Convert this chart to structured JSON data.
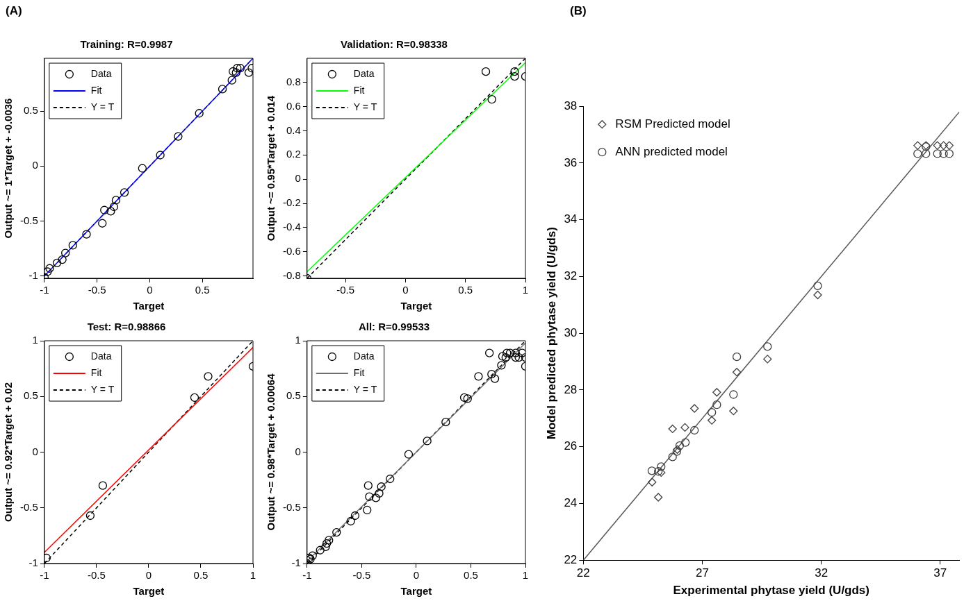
{
  "chart_data": [
    {
      "type": "scatter",
      "title": "Training: R=0.9987",
      "xlabel": "Target",
      "ylabel": "Output ~= 1*Target + -0.0036",
      "annotations": [
        "(A)"
      ],
      "xlim": [
        -1,
        0.98
      ],
      "ylim": [
        -1.02,
        0.98
      ],
      "xticks": [
        -1,
        -0.5,
        0,
        0.5
      ],
      "yticks": [
        -1,
        -0.5,
        0,
        0.5
      ],
      "legend": "top left",
      "series": [
        {
          "name": "Data",
          "type": "scatter",
          "color": "#000000",
          "marker": "circle",
          "x": [
            -1,
            -0.97,
            -0.95,
            -0.88,
            -0.83,
            -0.8,
            -0.73,
            -0.6,
            -0.45,
            -0.43,
            -0.37,
            -0.34,
            -0.32,
            -0.24,
            -0.07,
            0.1,
            0.27,
            0.47,
            0.69,
            0.78,
            0.79,
            0.82,
            0.83,
            0.86,
            0.94,
            0.97
          ],
          "values": [
            -1.01,
            -0.96,
            -0.93,
            -0.88,
            -0.85,
            -0.79,
            -0.72,
            -0.62,
            -0.52,
            -0.4,
            -0.41,
            -0.37,
            -0.31,
            -0.24,
            -0.02,
            0.1,
            0.27,
            0.48,
            0.7,
            0.78,
            0.86,
            0.85,
            0.89,
            0.89,
            0.85,
            0.89
          ]
        },
        {
          "name": "Fit",
          "type": "line",
          "color": "#0000ff",
          "marker": "none",
          "line_style": "solid",
          "x": [
            -1,
            0.98
          ],
          "values": [
            -1,
            0.98
          ]
        },
        {
          "name": "Y = T",
          "type": "line",
          "color": "#000000",
          "marker": "none",
          "line_style": "dashed",
          "x": [
            -1,
            0.98
          ],
          "values": [
            -1,
            0.98
          ]
        }
      ]
    },
    {
      "type": "scatter",
      "title": "Validation: R=0.98338",
      "xlabel": "Target",
      "ylabel": "Output ~= 0.95*Target + 0.014",
      "xlim": [
        -0.82,
        1
      ],
      "ylim": [
        -0.82,
        1
      ],
      "xticks": [
        -0.5,
        0,
        0.5,
        1
      ],
      "yticks": [
        -0.8,
        -0.6,
        -0.4,
        -0.2,
        0,
        0.2,
        0.4,
        0.6,
        0.8
      ],
      "legend": "top left",
      "series": [
        {
          "name": "Data",
          "type": "scatter",
          "color": "#000000",
          "marker": "circle",
          "x": [
            -0.82,
            0.67,
            0.72,
            0.91,
            0.91,
            1
          ],
          "values": [
            -0.82,
            0.89,
            0.66,
            0.89,
            0.85,
            0.85
          ]
        },
        {
          "name": "Fit",
          "type": "line",
          "color": "#00ff00",
          "marker": "none",
          "line_style": "solid",
          "x": [
            -0.82,
            1
          ],
          "values": [
            -0.765,
            0.964
          ]
        },
        {
          "name": "Y = T",
          "type": "line",
          "color": "#000000",
          "marker": "none",
          "line_style": "dashed",
          "x": [
            -0.82,
            1
          ],
          "values": [
            -0.82,
            1
          ]
        }
      ]
    },
    {
      "type": "scatter",
      "title": "Test: R=0.98866",
      "xlabel": "Target",
      "ylabel": "Output ~= 0.92*Target + 0.02",
      "xlim": [
        -1,
        1
      ],
      "ylim": [
        -1,
        1
      ],
      "xticks": [
        -1,
        -0.5,
        0,
        0.5,
        1
      ],
      "yticks": [
        -1,
        -0.5,
        0,
        0.5,
        1
      ],
      "legend": "top left",
      "series": [
        {
          "name": "Data",
          "type": "scatter",
          "color": "#000000",
          "marker": "circle",
          "x": [
            -0.98,
            -0.56,
            -0.44,
            0.44,
            0.57,
            1
          ],
          "values": [
            -0.95,
            -0.57,
            -0.3,
            0.49,
            0.68,
            0.77
          ]
        },
        {
          "name": "Fit",
          "type": "line",
          "color": "#ff0000",
          "marker": "none",
          "line_style": "solid",
          "x": [
            -1,
            1
          ],
          "values": [
            -0.9,
            0.94
          ]
        },
        {
          "name": "Y = T",
          "type": "line",
          "color": "#000000",
          "marker": "none",
          "line_style": "dashed",
          "x": [
            -1,
            1
          ],
          "values": [
            -1,
            1
          ]
        }
      ]
    },
    {
      "type": "scatter",
      "title": "All: R=0.99533",
      "xlabel": "Target",
      "ylabel": "Output ~= 0.98*Target + 0.00064",
      "xlim": [
        -1,
        1
      ],
      "ylim": [
        -1,
        1
      ],
      "xticks": [
        -1,
        -0.5,
        0,
        0.5,
        1
      ],
      "yticks": [
        -1,
        -0.5,
        0,
        0.5,
        1
      ],
      "legend": "top left",
      "series": [
        {
          "name": "Data",
          "type": "scatter",
          "color": "#000000",
          "marker": "circle",
          "x": [
            -1,
            -0.97,
            -0.95,
            -0.88,
            -0.83,
            -0.8,
            -0.73,
            -0.6,
            -0.45,
            -0.43,
            -0.37,
            -0.34,
            -0.32,
            -0.24,
            -0.07,
            0.1,
            0.27,
            0.47,
            0.69,
            0.78,
            0.79,
            0.82,
            0.83,
            0.86,
            0.94,
            0.97,
            -0.82,
            0.67,
            0.72,
            0.91,
            0.91,
            1,
            -0.98,
            -0.56,
            -0.44,
            0.44,
            0.57,
            1
          ],
          "values": [
            -1,
            -0.96,
            -0.93,
            -0.88,
            -0.85,
            -0.79,
            -0.72,
            -0.62,
            -0.52,
            -0.4,
            -0.41,
            -0.37,
            -0.31,
            -0.24,
            -0.02,
            0.1,
            0.27,
            0.48,
            0.7,
            0.78,
            0.86,
            0.85,
            0.89,
            0.89,
            0.85,
            0.89,
            -0.82,
            0.89,
            0.66,
            0.89,
            0.85,
            0.85,
            -0.95,
            -0.57,
            -0.3,
            0.49,
            0.68,
            0.77
          ]
        },
        {
          "name": "Fit",
          "type": "line",
          "color": "#6e6e6e",
          "marker": "none",
          "line_style": "solid",
          "x": [
            -1,
            1
          ],
          "values": [
            -0.98,
            0.98
          ]
        },
        {
          "name": "Y = T",
          "type": "line",
          "color": "#000000",
          "marker": "none",
          "line_style": "dashed",
          "x": [
            -1,
            1
          ],
          "values": [
            -1,
            1
          ]
        }
      ]
    },
    {
      "type": "scatter",
      "xlabel": "Experimental phytase yield (U/gds)",
      "ylabel": "Model predicted phytase yield (U/gds)",
      "annotations": [
        "(B)"
      ],
      "xlim": [
        22,
        37.8
      ],
      "ylim": [
        22,
        38
      ],
      "xticks": [
        22,
        27,
        32,
        37
      ],
      "yticks": [
        22,
        24,
        26,
        28,
        30,
        32,
        34,
        36,
        38
      ],
      "legend": "top left",
      "series": [
        {
          "name": "RSM Predicted model",
          "type": "scatter",
          "color": "#404040",
          "marker": "diamond",
          "x": [
            24.89,
            25.15,
            25.27,
            25.75,
            25.95,
            26.27,
            26.67,
            27.4,
            27.61,
            28.31,
            28.45,
            29.74,
            31.85,
            36.05,
            36.4,
            36.88,
            37.14,
            37.38
          ],
          "values": [
            24.75,
            24.22,
            25.09,
            26.63,
            25.9,
            26.68,
            27.35,
            26.93,
            27.92,
            27.26,
            28.63,
            29.09,
            31.35,
            36.62,
            36.62,
            36.62,
            36.62,
            36.62
          ]
        },
        {
          "name": "ANN predicted model",
          "type": "scatter",
          "color": "#404040",
          "marker": "circle",
          "x": [
            24.88,
            25.15,
            25.27,
            25.75,
            25.93,
            26.05,
            26.29,
            26.67,
            27.4,
            27.61,
            28.31,
            28.45,
            29.74,
            31.85,
            36.05,
            36.4,
            36.4,
            36.88,
            37.14,
            37.38
          ],
          "values": [
            25.15,
            25.13,
            25.3,
            25.64,
            25.83,
            26.04,
            26.15,
            26.58,
            27.21,
            27.48,
            27.84,
            29.17,
            29.53,
            31.67,
            36.33,
            36.33,
            36.58,
            36.33,
            36.33,
            36.33
          ]
        },
        {
          "type": "line",
          "color": "#555555",
          "marker": "none",
          "line_style": "solid",
          "x": [
            22,
            37.8
          ],
          "values": [
            22,
            37.8
          ]
        }
      ]
    }
  ]
}
